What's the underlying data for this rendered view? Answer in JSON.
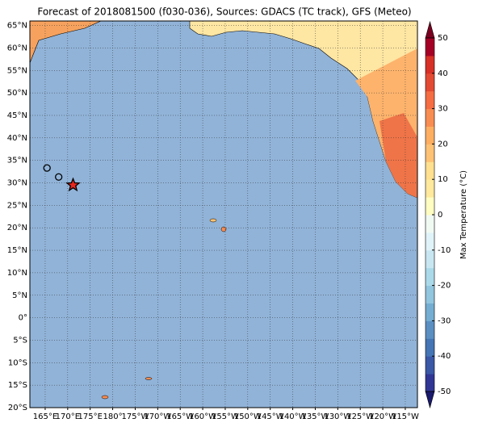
{
  "chart_data": {
    "type": "map",
    "title": "Forecast of 2018081500 (f030-036), Sources: GDACS (TC track), GFS (Meteo)",
    "xlim": [
      161.6,
      247.7
    ],
    "ylim": [
      -20,
      66
    ],
    "xticks": [
      {
        "value": 165,
        "label": "165°E"
      },
      {
        "value": 170,
        "label": "170°E"
      },
      {
        "value": 175,
        "label": "175°E"
      },
      {
        "value": 180,
        "label": "180°"
      },
      {
        "value": 185,
        "label": "175°W"
      },
      {
        "value": 190,
        "label": "170°W"
      },
      {
        "value": 195,
        "label": "165°W"
      },
      {
        "value": 200,
        "label": "160°W"
      },
      {
        "value": 205,
        "label": "155°W"
      },
      {
        "value": 210,
        "label": "150°W"
      },
      {
        "value": 215,
        "label": "145°W"
      },
      {
        "value": 220,
        "label": "140°W"
      },
      {
        "value": 225,
        "label": "135°W"
      },
      {
        "value": 230,
        "label": "130°W"
      },
      {
        "value": 235,
        "label": "125°W"
      },
      {
        "value": 240,
        "label": "120°W"
      },
      {
        "value": 245,
        "label": "115°W"
      }
    ],
    "yticks": [
      {
        "value": -20,
        "label": "20°S"
      },
      {
        "value": -15,
        "label": "15°S"
      },
      {
        "value": -10,
        "label": "10°S"
      },
      {
        "value": -5,
        "label": "5°S"
      },
      {
        "value": 0,
        "label": "0°"
      },
      {
        "value": 5,
        "label": "5°N"
      },
      {
        "value": 10,
        "label": "10°N"
      },
      {
        "value": 15,
        "label": "15°N"
      },
      {
        "value": 20,
        "label": "20°N"
      },
      {
        "value": 25,
        "label": "25°N"
      },
      {
        "value": 30,
        "label": "30°N"
      },
      {
        "value": 35,
        "label": "35°N"
      },
      {
        "value": 40,
        "label": "40°N"
      },
      {
        "value": 45,
        "label": "45°N"
      },
      {
        "value": 50,
        "label": "50°N"
      },
      {
        "value": 55,
        "label": "55°N"
      },
      {
        "value": 60,
        "label": "60°N"
      },
      {
        "value": 65,
        "label": "65°N"
      }
    ],
    "grid": true,
    "ocean_color": "#91b3d8",
    "track": {
      "lon": [
        165.4,
        168.0,
        171.2
      ],
      "lat": [
        33.3,
        31.3,
        29.5
      ],
      "markers": [
        "circle",
        "circle",
        "star"
      ],
      "star_color": "#e8261c"
    },
    "colorbar": {
      "label": "Max Temperature (°C)",
      "lim": [
        -50,
        50
      ],
      "ticks": [
        -50,
        -40,
        -30,
        -20,
        -10,
        0,
        10,
        20,
        30,
        40,
        50
      ],
      "colors": [
        "#313695",
        "#3a58a6",
        "#4575b4",
        "#5b8fc2",
        "#74add1",
        "#92c5de",
        "#abd9e9",
        "#c8e6f1",
        "#e0f3f8",
        "#f0f9f2",
        "#fffdc1",
        "#fee99d",
        "#fee090",
        "#fdc274",
        "#fdae61",
        "#f88d52",
        "#f46d43",
        "#e34a33",
        "#d73027",
        "#a50026"
      ],
      "under_color": "#1a1a6e",
      "over_color": "#7a0020"
    }
  }
}
